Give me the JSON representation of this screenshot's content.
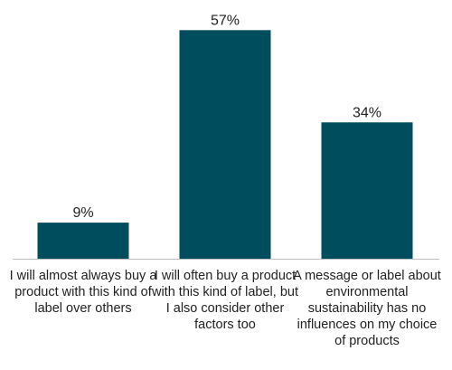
{
  "chart_data": {
    "type": "bar",
    "categories": [
      "I will almost always buy a product with this kind of label over others",
      "I will often buy a product with this kind of label, but I also consider other factors too",
      "A message or label about environmental sustainability has no influences on my choice of products"
    ],
    "values": [
      9,
      57,
      34
    ],
    "value_labels": [
      "9%",
      "57%",
      "34%"
    ],
    "ylim": [
      0,
      60
    ],
    "grid": false,
    "legend": "none",
    "bar_color": "#004d5e",
    "axis_color": "#bfbfbf",
    "text_color": "#222222"
  }
}
